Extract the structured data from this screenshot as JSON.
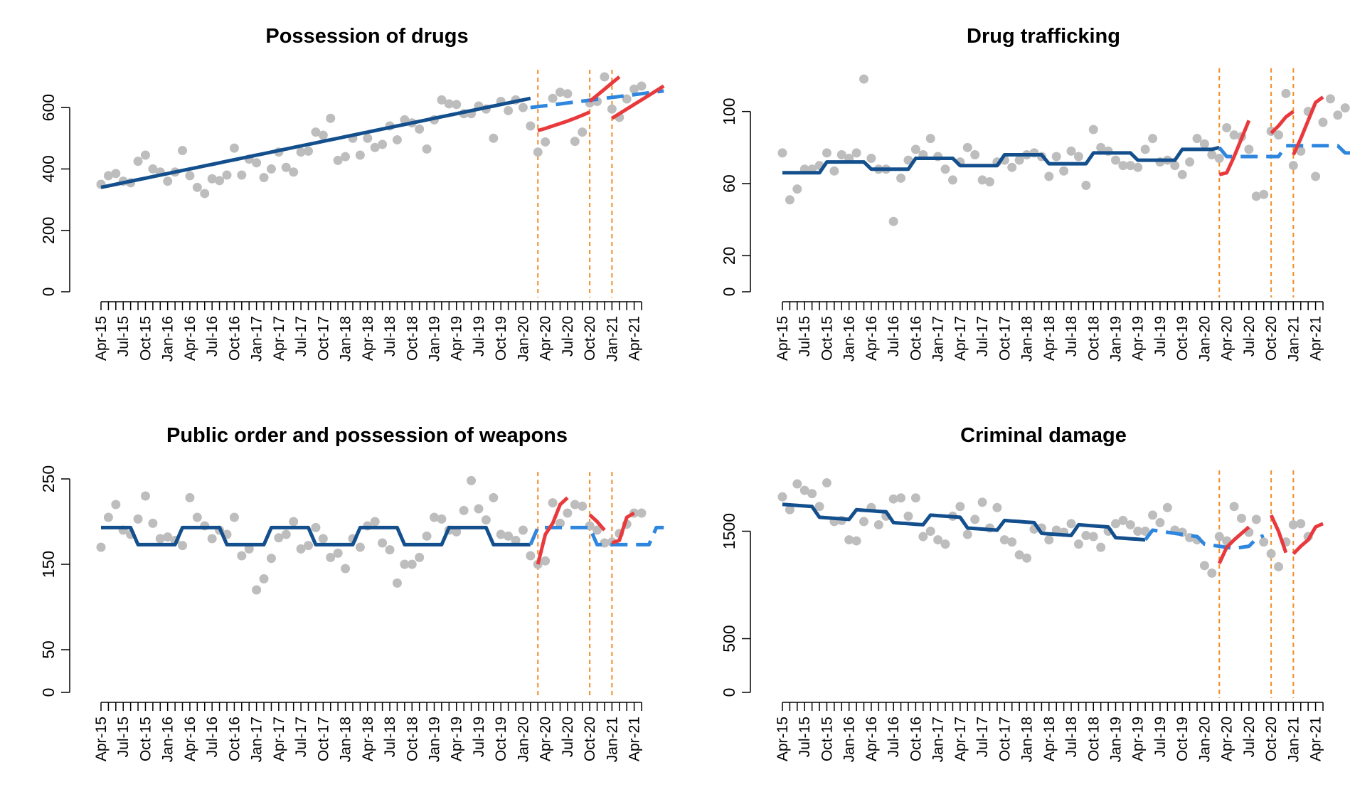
{
  "figure": {
    "month_labels": [
      "Apr-15",
      "Jul-15",
      "Oct-15",
      "Jan-16",
      "Apr-16",
      "Jul-16",
      "Oct-16",
      "Jan-17",
      "Apr-17",
      "Jul-17",
      "Oct-17",
      "Jan-18",
      "Apr-18",
      "Jul-18",
      "Oct-18",
      "Jan-19",
      "Apr-19",
      "Jul-19",
      "Oct-19",
      "Jan-20",
      "Apr-20",
      "Jul-20",
      "Oct-20",
      "Jan-21",
      "Apr-21"
    ],
    "colors": {
      "observed": "#bdbdbd",
      "baseline_fit": "#134f8c",
      "counterfactual": "#2e86de",
      "lockdown_fit": "#e8393c",
      "lockdown_marker": "#f28c28"
    }
  },
  "chart_data": [
    {
      "type": "line",
      "title": "Possession of drugs",
      "x_start": "Apr-15",
      "ylim": [
        0,
        700
      ],
      "yticks": [
        0,
        200,
        400,
        600
      ],
      "lockdown_lines": [
        "Mar-20",
        "Oct-20",
        "Jan-21"
      ],
      "observed": [
        350,
        378,
        385,
        360,
        355,
        425,
        445,
        400,
        390,
        360,
        390,
        460,
        378,
        340,
        320,
        368,
        362,
        380,
        468,
        380,
        432,
        420,
        372,
        400,
        455,
        405,
        390,
        455,
        458,
        520,
        510,
        565,
        428,
        440,
        500,
        445,
        500,
        470,
        480,
        540,
        495,
        560,
        550,
        530,
        465,
        560,
        625,
        612,
        610,
        580,
        580,
        605,
        595,
        500,
        620,
        590,
        625,
        600,
        540,
        455,
        488,
        630,
        650,
        645,
        490,
        520,
        615,
        620,
        700,
        595,
        568,
        628,
        660,
        670
      ],
      "baseline_fit": [
        340,
        345,
        350,
        355,
        360,
        365,
        370,
        375,
        380,
        385,
        390,
        395,
        400,
        405,
        410,
        415,
        420,
        425,
        430,
        435,
        440,
        445,
        450,
        455,
        460,
        465,
        470,
        475,
        480,
        485,
        490,
        495,
        500,
        505,
        510,
        515,
        520,
        525,
        530,
        535,
        540,
        545,
        550,
        555,
        560,
        565,
        570,
        575,
        580,
        585,
        590,
        595,
        600,
        605,
        610,
        615,
        620,
        625,
        630
      ],
      "counterfactual": [
        600,
        603,
        606,
        609,
        612,
        615,
        618,
        621,
        624,
        627,
        630,
        633,
        636,
        639,
        642,
        645,
        648,
        651,
        654
      ],
      "lockdown_fit": [
        [
          525,
          532,
          540,
          548,
          556,
          565,
          575,
          585
        ],
        [
          620,
          640,
          660,
          680,
          700
        ],
        [
          565,
          580,
          595,
          610,
          625,
          640,
          655,
          670
        ]
      ]
    },
    {
      "type": "line",
      "title": "Drug trafficking",
      "x_start": "Apr-15",
      "ylim": [
        0,
        120
      ],
      "yticks": [
        0,
        20,
        60,
        100
      ],
      "lockdown_lines": [
        "Mar-20",
        "Oct-20",
        "Jan-21"
      ],
      "observed": [
        77,
        51,
        57,
        68,
        68,
        70,
        77,
        67,
        76,
        74,
        77,
        118,
        74,
        68,
        68,
        39,
        63,
        73,
        79,
        76,
        85,
        75,
        68,
        62,
        72,
        80,
        76,
        62,
        61,
        72,
        73,
        69,
        73,
        76,
        77,
        75,
        64,
        75,
        67,
        78,
        75,
        59,
        90,
        80,
        78,
        73,
        70,
        70,
        69,
        79,
        85,
        72,
        73,
        70,
        65,
        72,
        85,
        82,
        76,
        74,
        91,
        87,
        86,
        79,
        53,
        54,
        89,
        87,
        110,
        70,
        78,
        100,
        64,
        94,
        107,
        98,
        102
      ],
      "baseline_fit": [
        66,
        66,
        66,
        66,
        66,
        66,
        72,
        72,
        72,
        72,
        72,
        72,
        68,
        68,
        68,
        68,
        68,
        68,
        74,
        74,
        74,
        74,
        74,
        74,
        70,
        70,
        70,
        70,
        70,
        70,
        76,
        76,
        76,
        76,
        76,
        76,
        71,
        71,
        71,
        71,
        71,
        71,
        77,
        77,
        77,
        77,
        77,
        77,
        73,
        73,
        73,
        73,
        73,
        73,
        79,
        79,
        79,
        79,
        79,
        80
      ],
      "counterfactual": [
        80,
        75,
        75,
        75,
        75,
        75,
        75,
        75,
        75,
        81,
        81,
        81,
        81,
        81,
        81,
        81,
        81,
        77,
        77
      ],
      "lockdown_fit": [
        [
          65,
          66,
          75,
          85,
          95
        ],
        [
          88,
          92,
          97,
          100
        ],
        [
          76,
          85,
          95,
          105,
          108
        ]
      ]
    },
    {
      "type": "line",
      "title": "Public order and possession of weapons",
      "x_start": "Apr-15",
      "ylim": [
        0,
        250
      ],
      "yticks": [
        0,
        50,
        150,
        250
      ],
      "lockdown_lines": [
        "Mar-20",
        "Oct-20",
        "Jan-21"
      ],
      "observed": [
        170,
        205,
        220,
        190,
        185,
        203,
        230,
        198,
        180,
        182,
        178,
        172,
        228,
        205,
        195,
        180,
        190,
        185,
        205,
        160,
        168,
        120,
        133,
        157,
        181,
        185,
        200,
        168,
        172,
        193,
        180,
        158,
        163,
        145,
        180,
        170,
        195,
        200,
        175,
        167,
        128,
        150,
        150,
        158,
        183,
        205,
        203,
        190,
        188,
        213,
        248,
        215,
        202,
        228,
        185,
        183,
        178,
        190,
        160,
        150,
        154,
        222,
        198,
        210,
        220,
        218,
        195,
        190,
        175,
        176,
        186,
        197,
        210,
        210
      ],
      "baseline_fit": [
        193,
        193,
        193,
        193,
        193,
        173,
        173,
        173,
        173,
        173,
        173,
        193,
        193,
        193,
        193,
        193,
        193,
        173,
        173,
        173,
        173,
        173,
        173,
        193,
        193,
        193,
        193,
        193,
        193,
        173,
        173,
        173,
        173,
        173,
        173,
        193,
        193,
        193,
        193,
        193,
        193,
        173,
        173,
        173,
        173,
        173,
        173,
        193,
        193,
        193,
        193,
        193,
        193,
        173,
        173,
        173,
        173,
        173,
        173
      ],
      "counterfactual": [
        173,
        193,
        193,
        193,
        193,
        193,
        193,
        193,
        193,
        173,
        173,
        173,
        173,
        173,
        173,
        173,
        173,
        193,
        193
      ],
      "lockdown_fit": [
        [
          150,
          185,
          198,
          220,
          228
        ],
        [
          208,
          200,
          190
        ],
        [
          175,
          178,
          205,
          210
        ]
      ]
    },
    {
      "type": "line",
      "title": "Criminal damage",
      "x_start": "Apr-15",
      "ylim": [
        0,
        2000
      ],
      "yticks": [
        0,
        500,
        1500
      ],
      "lockdown_lines": [
        "Mar-20",
        "Oct-20",
        "Jan-21"
      ],
      "observed": [
        1820,
        1700,
        1940,
        1880,
        1850,
        1730,
        1950,
        1590,
        1600,
        1420,
        1410,
        1590,
        1720,
        1560,
        1640,
        1800,
        1810,
        1640,
        1810,
        1450,
        1500,
        1420,
        1380,
        1640,
        1730,
        1470,
        1610,
        1770,
        1530,
        1720,
        1420,
        1400,
        1280,
        1250,
        1520,
        1530,
        1420,
        1510,
        1490,
        1570,
        1380,
        1460,
        1450,
        1350,
        1500,
        1570,
        1600,
        1560,
        1500,
        1500,
        1650,
        1580,
        1720,
        1510,
        1490,
        1440,
        1420,
        1180,
        1110,
        1450,
        1410,
        1730,
        1620,
        1490,
        1610,
        1400,
        1290,
        1170,
        1400,
        1560,
        1570,
        1450
      ],
      "baseline_fit": [
        1750,
        1745,
        1740,
        1735,
        1730,
        1630,
        1625,
        1620,
        1615,
        1610,
        1700,
        1695,
        1690,
        1685,
        1680,
        1580,
        1575,
        1570,
        1565,
        1560,
        1650,
        1645,
        1640,
        1635,
        1630,
        1530,
        1525,
        1520,
        1515,
        1510,
        1600,
        1595,
        1590,
        1585,
        1580,
        1480,
        1475,
        1470,
        1465,
        1460,
        1560,
        1555,
        1550,
        1545,
        1540,
        1440,
        1435,
        1430,
        1425,
        1420
      ],
      "counterfactual": [
        1420,
        1510,
        1500,
        1490,
        1480,
        1470,
        1460,
        1450,
        1380,
        1370,
        1360,
        1350,
        1340,
        1350,
        1360,
        1430,
        1460
      ],
      "lockdown_fit": [
        [
          1200,
          1350,
          1420,
          1480,
          1540
        ],
        [
          1650,
          1500,
          1300
        ],
        [
          1290,
          1360,
          1420,
          1540,
          1570
        ]
      ]
    }
  ]
}
